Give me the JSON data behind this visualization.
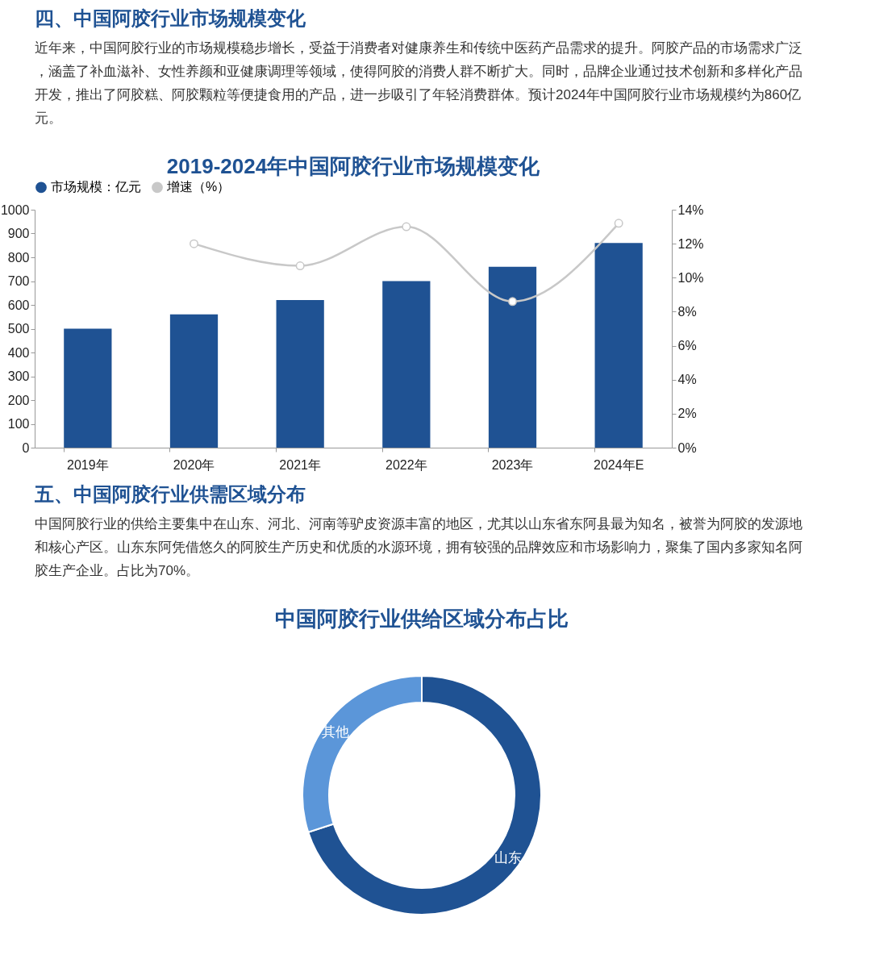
{
  "chart_data": [
    {
      "type": "bar",
      "title": "2019-2024年中国阿胶行业市场规模变化",
      "annotations": [
        "四、中国阿胶行业市场规模变化",
        "近年来，中国阿胶行业的市场规模稳步增长，受益于消费者对健康养生和传统中医药产品需求的提升。阿胶产品的市场需求广泛，涵盖了补血滋补、女性养颜和亚健康调理等领域，使得阿胶的消费人群不断扩大。同时，品牌企业通过技术创新和多样化产品开发，推出了阿胶糕、阿胶颗粒等便捷食用的产品，进一步吸引了年轻消费群体。预计2024年中国阿胶行业市场规模约为860亿元。"
      ],
      "categories": [
        "2019年",
        "2020年",
        "2021年",
        "2022年",
        "2023年",
        "2024年E"
      ],
      "series": [
        {
          "name": "市场规模：亿元",
          "type": "bar",
          "color": "#1f5293",
          "values": [
            500,
            560,
            620,
            700,
            760,
            860
          ]
        },
        {
          "name": "增速（%）",
          "type": "line",
          "axis": "y2",
          "color": "#c8c8c8",
          "values": [
            null,
            12.0,
            10.7,
            13.0,
            8.6,
            13.2
          ]
        }
      ],
      "ylim": [
        0,
        1000
      ],
      "yticks": [
        0,
        100,
        200,
        300,
        400,
        500,
        600,
        700,
        800,
        900,
        {
          "value": 1000,
          "label": "1000"
        }
      ],
      "y2lim": [
        0,
        14
      ],
      "y2ticks": [
        {
          "value": 0,
          "label": "0%"
        },
        {
          "value": 2,
          "label": "2%"
        },
        {
          "value": 4,
          "label": "4%"
        },
        {
          "value": 6,
          "label": "6%"
        },
        {
          "value": 8,
          "label": "8%"
        },
        {
          "value": 10,
          "label": "10%"
        },
        {
          "value": 12,
          "label": "12%"
        },
        {
          "value": 14,
          "label": "14%"
        }
      ],
      "legend": "top",
      "marker": "circle",
      "grid": false
    },
    {
      "type": "donut",
      "title": "中国阿胶行业供给区域分布占比",
      "annotations": [
        "五、中国阿胶行业供需区域分布",
        "中国阿胶行业的供给主要集中在山东、河北、河南等驴皮资源丰富的地区，尤其以山东省东阿县最为知名，被誉为阿胶的发源地和核心产区。山东东阿凭借悠久的阿胶生产历史和优质的水源环境，拥有较强的品牌效应和市场影响力，聚集了国内多家知名阿胶生产企业。占比为70%。"
      ],
      "categories": [
        "山东",
        "其他"
      ],
      "values": [
        70,
        30
      ],
      "colors": [
        "#1f5293",
        "#5b96d9"
      ],
      "legend": false
    }
  ]
}
